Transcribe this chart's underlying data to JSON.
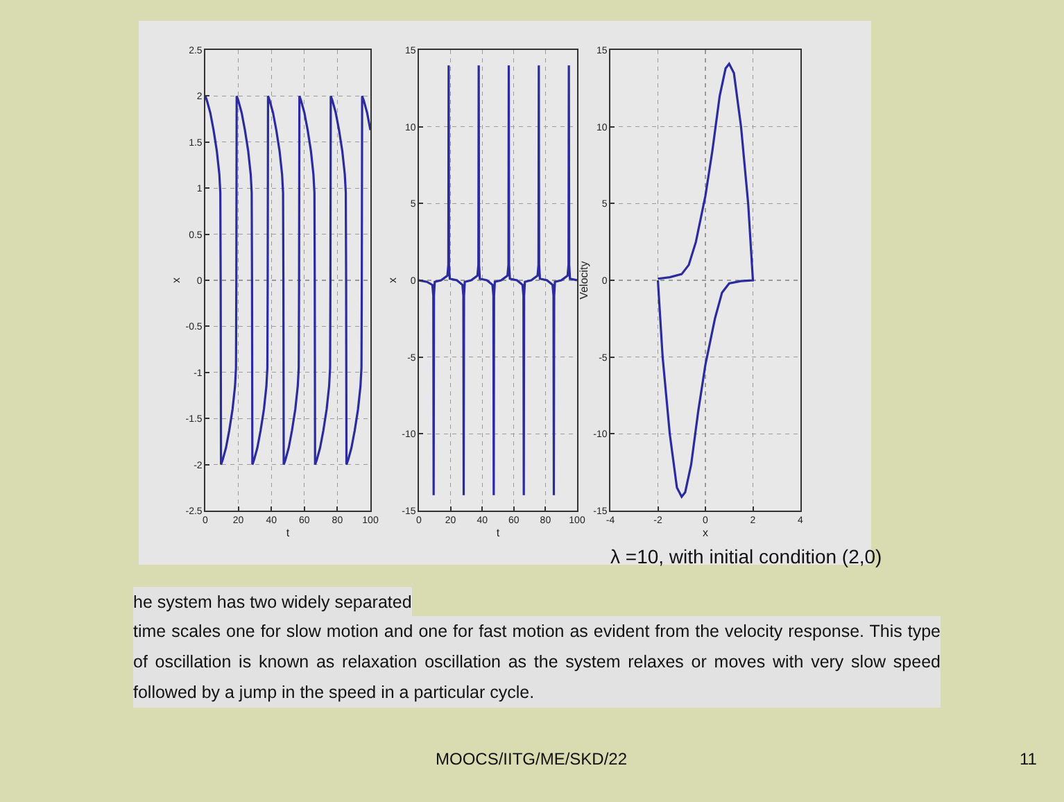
{
  "chart_data": [
    {
      "type": "line",
      "xlabel": "t",
      "ylabel": "x",
      "xlim": [
        0,
        100
      ],
      "ylim": [
        -2.5,
        2.5
      ],
      "xticks": [
        0,
        20,
        40,
        60,
        80,
        100
      ],
      "yticks": [
        -2.5,
        -2,
        -1.5,
        -1,
        -0.5,
        0,
        0.5,
        1,
        1.5,
        2,
        2.5
      ],
      "grid": true,
      "line_style": "solid",
      "x": [
        0,
        1,
        3,
        5,
        7,
        8.5,
        9.1,
        9.3,
        9.5,
        10.5,
        12.5,
        14.5,
        16.5,
        18,
        18.6,
        18.8,
        19,
        20,
        22,
        24,
        26,
        27.5,
        28.1,
        28.3,
        28.5,
        29.5,
        31.5,
        33.5,
        35.5,
        37,
        37.6,
        37.8,
        38,
        39,
        41,
        43,
        45,
        46.5,
        47.1,
        47.3,
        47.5,
        48.5,
        50.5,
        52.5,
        54.5,
        56,
        56.6,
        56.8,
        57,
        58,
        60,
        62,
        64,
        65.5,
        66.1,
        66.3,
        66.5,
        67.5,
        69.5,
        71.5,
        73.5,
        75,
        75.6,
        75.8,
        76,
        77,
        79,
        81,
        83,
        84.5,
        85.1,
        85.3,
        85.5,
        86.5,
        88.5,
        90.5,
        92.5,
        94,
        94.6,
        94.8,
        95,
        96,
        98,
        100
      ],
      "series": [
        {
          "color": "#2b2b9e",
          "values": [
            2,
            1.95,
            1.82,
            1.63,
            1.4,
            1.15,
            0.95,
            0,
            -2,
            -1.95,
            -1.82,
            -1.63,
            -1.4,
            -1.15,
            -0.95,
            0,
            2,
            1.95,
            1.82,
            1.63,
            1.4,
            1.15,
            0.95,
            0,
            -2,
            -1.95,
            -1.82,
            -1.63,
            -1.4,
            -1.15,
            -0.95,
            0,
            2,
            1.95,
            1.82,
            1.63,
            1.4,
            1.15,
            0.95,
            0,
            -2,
            -1.95,
            -1.82,
            -1.63,
            -1.4,
            -1.15,
            -0.95,
            0,
            2,
            1.95,
            1.82,
            1.63,
            1.4,
            1.15,
            0.95,
            0,
            -2,
            -1.95,
            -1.82,
            -1.63,
            -1.4,
            -1.15,
            -0.95,
            0,
            2,
            1.95,
            1.82,
            1.63,
            1.4,
            1.15,
            0.95,
            0,
            -2,
            -1.95,
            -1.82,
            -1.63,
            -1.4,
            -1.15,
            -0.95,
            0,
            2,
            1.95,
            1.82,
            1.63
          ]
        }
      ]
    },
    {
      "type": "line",
      "xlabel": "t",
      "ylabel": "x",
      "xlim": [
        0,
        100
      ],
      "ylim": [
        -15,
        15
      ],
      "xticks": [
        0,
        20,
        40,
        60,
        80,
        100
      ],
      "yticks": [
        -15,
        -10,
        -5,
        0,
        5,
        10,
        15
      ],
      "grid": true,
      "line_style": "solid",
      "x": [
        0,
        5,
        8.5,
        9.1,
        9.3,
        9.5,
        10,
        14,
        18,
        18.6,
        18.8,
        19,
        19.5,
        24,
        27.5,
        28.1,
        28.3,
        28.5,
        29,
        33,
        37,
        37.6,
        37.8,
        38,
        38.5,
        43,
        46.5,
        47.1,
        47.3,
        47.5,
        48,
        52,
        56,
        56.6,
        56.8,
        57,
        57.5,
        62,
        65.5,
        66.1,
        66.3,
        66.5,
        67,
        71,
        75,
        75.6,
        75.8,
        76,
        76.5,
        81,
        84.5,
        85.1,
        85.3,
        85.5,
        86,
        90,
        94,
        94.6,
        94.8,
        95,
        95.5,
        100
      ],
      "series": [
        {
          "color": "#2b2b9e",
          "values": [
            0,
            -0.1,
            -0.3,
            -1,
            -14,
            -1,
            -0.1,
            0,
            0.3,
            1,
            14,
            1,
            0.1,
            0,
            -0.3,
            -1,
            -14,
            -1,
            -0.1,
            0,
            0.3,
            1,
            14,
            1,
            0.1,
            0,
            -0.3,
            -1,
            -14,
            -1,
            -0.1,
            0,
            0.3,
            1,
            14,
            1,
            0.1,
            0,
            -0.3,
            -1,
            -14,
            -1,
            -0.1,
            0,
            0.3,
            1,
            14,
            1,
            0.1,
            0,
            -0.3,
            -1,
            -14,
            -1,
            -0.1,
            0,
            0.3,
            1,
            14,
            1,
            0.1,
            0
          ]
        }
      ]
    },
    {
      "type": "line",
      "xlabel": "x",
      "ylabel": "Velocity",
      "xlim": [
        -4,
        4
      ],
      "ylim": [
        -15,
        15
      ],
      "xticks": [
        -4,
        -2,
        0,
        2,
        4
      ],
      "yticks": [
        -15,
        -10,
        -5,
        0,
        5,
        10,
        15
      ],
      "grid": true,
      "line_style": "solid",
      "x": [
        -2,
        -1.5,
        -1,
        -0.7,
        -0.4,
        0,
        0.3,
        0.6,
        0.85,
        1,
        1.2,
        1.5,
        1.8,
        2,
        1.5,
        1,
        0.7,
        0.4,
        0,
        -0.3,
        -0.6,
        -0.85,
        -1,
        -1.2,
        -1.5,
        -1.8,
        -2
      ],
      "series": [
        {
          "color": "#2b2b9e",
          "values": [
            0.1,
            0.2,
            0.4,
            1,
            2.5,
            5.5,
            8.5,
            12,
            13.8,
            14.1,
            13.5,
            10,
            5,
            0,
            -0.05,
            -0.2,
            -0.8,
            -2.5,
            -5.5,
            -8.5,
            -12,
            -13.8,
            -14.1,
            -13.5,
            -10,
            -5,
            0
          ]
        }
      ],
      "annotations": [
        "λ =10, with initial condition (2,0)",
        "he system has two widely separated",
        "time scales one for slow motion and one for fast motion as evident from the velocity response. This type of oscillation is known as relaxation oscillation as the system relaxes or moves with very slow speed followed by a jump in the speed in a particular cycle.",
        "MOOCS/IITG/ME/SKD/22",
        "11"
      ]
    }
  ]
}
